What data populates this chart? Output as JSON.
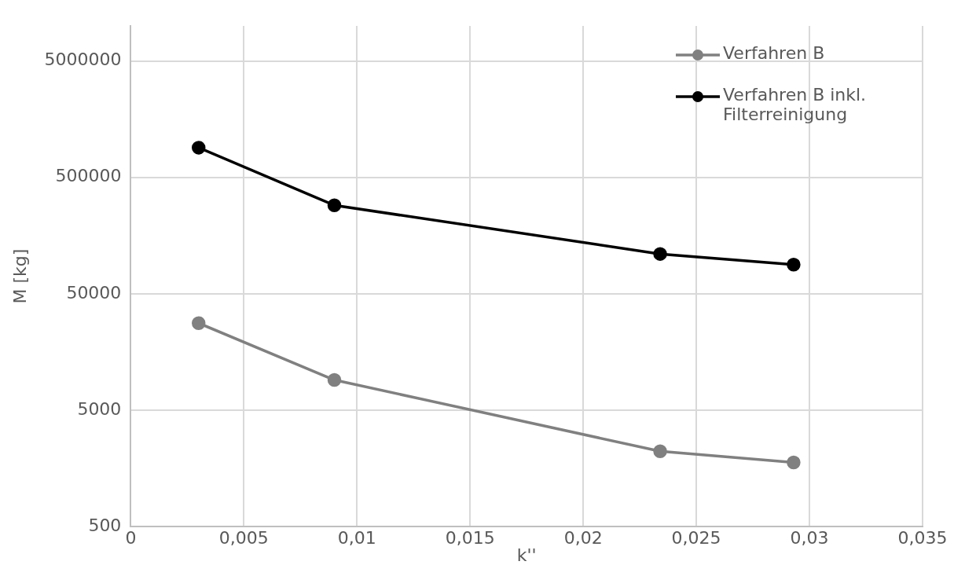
{
  "chart_data": {
    "type": "line",
    "xlabel": "k''",
    "ylabel": "M [kg]",
    "x": [
      0.003,
      0.009,
      0.0234,
      0.0293
    ],
    "series": [
      {
        "name": "Verfahren B",
        "color": "#808080",
        "values": [
          28000,
          9100,
          2220,
          1780
        ]
      },
      {
        "name": "Verfahren B inkl. Filterreinigung",
        "color": "#000000",
        "values": [
          900000,
          288000,
          110000,
          89000
        ]
      }
    ],
    "xlim": [
      0,
      0.035
    ],
    "xticks": [
      {
        "value": 0,
        "label": "0"
      },
      {
        "value": 0.005,
        "label": "0,005"
      },
      {
        "value": 0.01,
        "label": "0,01"
      },
      {
        "value": 0.015,
        "label": "0,015"
      },
      {
        "value": 0.02,
        "label": "0,02"
      },
      {
        "value": 0.025,
        "label": "0,025"
      },
      {
        "value": 0.03,
        "label": "0,03"
      },
      {
        "value": 0.035,
        "label": "0,035"
      }
    ],
    "ylim": [
      500,
      10000000
    ],
    "yticks": [
      500,
      5000,
      50000,
      500000,
      5000000
    ],
    "log": "y",
    "grid": true,
    "legend": "top right",
    "marker": "circle",
    "line_style": "solid"
  }
}
